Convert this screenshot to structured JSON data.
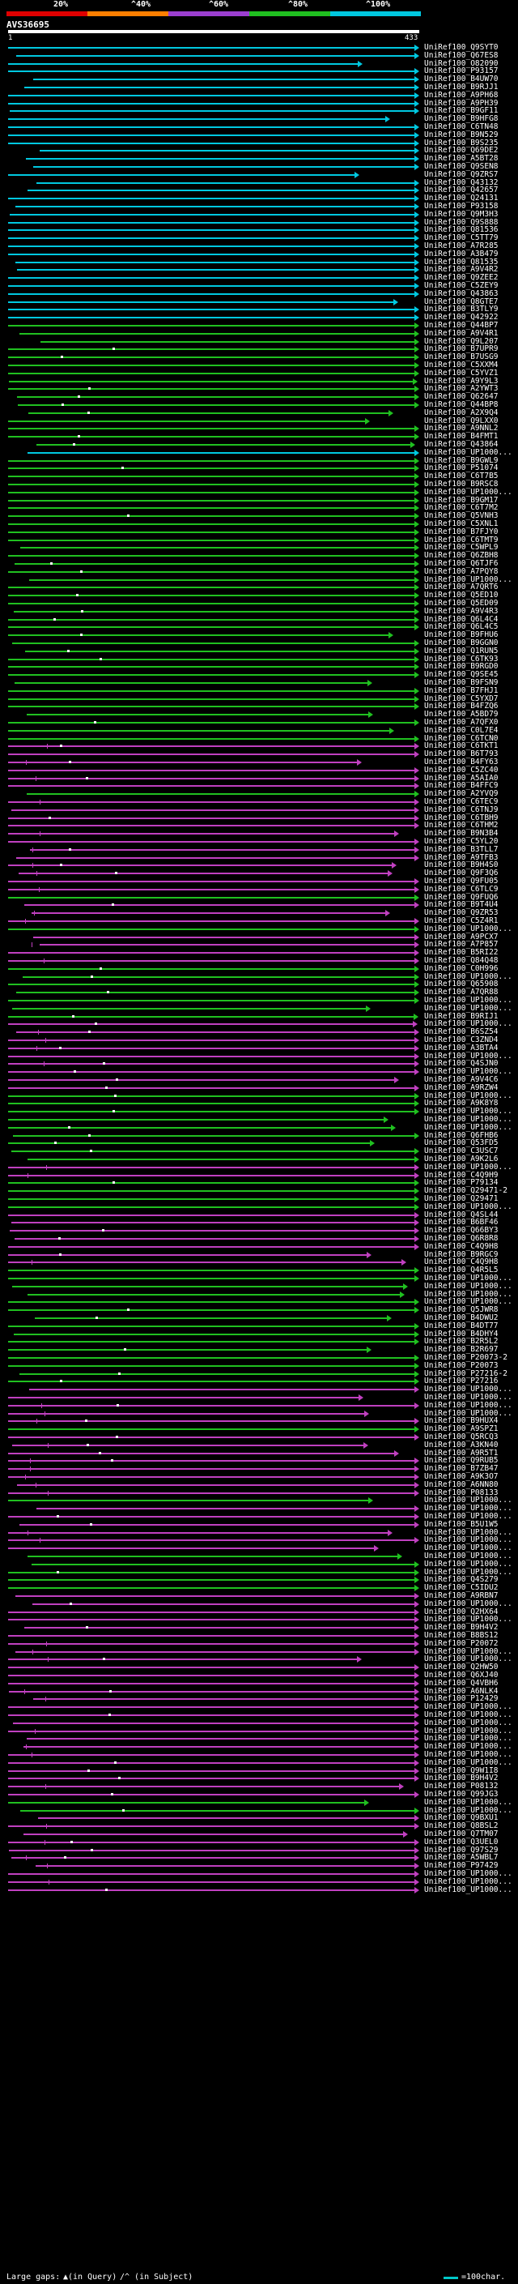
{
  "scale": {
    "ticks": [
      "20%",
      "^40%",
      "^60%",
      "^80%",
      "^100%"
    ],
    "colors": [
      "#e00000",
      "#ff7f00",
      "#9c3fd0",
      "#20c020",
      "#00c8e0"
    ]
  },
  "query": {
    "name": "AVS36695",
    "start": "1",
    "end": "433"
  },
  "hits": [
    {
      "id": "UniRef100_Q9SYT0",
      "pct": 100
    },
    {
      "id": "UniRef100_Q67ES8",
      "pct": 100
    },
    {
      "id": "UniRef100_O82090",
      "pct": 100
    },
    {
      "id": "UniRef100_P93157",
      "pct": 100
    },
    {
      "id": "UniRef100_B4UW70",
      "pct": 100
    },
    {
      "id": "UniRef100_B9RJJ1",
      "pct": 100
    },
    {
      "id": "UniRef100_A9PH68",
      "pct": 100
    },
    {
      "id": "UniRef100_A9PH39",
      "pct": 100
    },
    {
      "id": "UniRef100_B9GF11",
      "pct": 100
    },
    {
      "id": "UniRef100_B9HFG8",
      "pct": 100
    },
    {
      "id": "UniRef100_C6TN48",
      "pct": 100
    },
    {
      "id": "UniRef100_B9N529",
      "pct": 100
    },
    {
      "id": "UniRef100_B9S235",
      "pct": 100
    },
    {
      "id": "UniRef100_Q69DE2",
      "pct": 100
    },
    {
      "id": "UniRef100_A5BT28",
      "pct": 100
    },
    {
      "id": "UniRef100_Q9SEN8",
      "pct": 100
    },
    {
      "id": "UniRef100_Q9ZRS7",
      "pct": 100
    },
    {
      "id": "UniRef100_Q43132",
      "pct": 100
    },
    {
      "id": "UniRef100_Q42657",
      "pct": 100
    },
    {
      "id": "UniRef100_Q24131",
      "pct": 100
    },
    {
      "id": "UniRef100_P93158",
      "pct": 100
    },
    {
      "id": "UniRef100_Q9M3H3",
      "pct": 100
    },
    {
      "id": "UniRef100_Q9S888",
      "pct": 100
    },
    {
      "id": "UniRef100_Q81536",
      "pct": 100
    },
    {
      "id": "UniRef100_C5TT79",
      "pct": 100
    },
    {
      "id": "UniRef100_A7R285",
      "pct": 100
    },
    {
      "id": "UniRef100_A3B479",
      "pct": 100
    },
    {
      "id": "UniRef100_Q81535",
      "pct": 100
    },
    {
      "id": "UniRef100_A9V4R2",
      "pct": 100
    },
    {
      "id": "UniRef100_Q9ZEE2",
      "pct": 100
    },
    {
      "id": "UniRef100_C5ZEY9",
      "pct": 100
    },
    {
      "id": "UniRef100_Q43863",
      "pct": 100
    },
    {
      "id": "UniRef100_Q8GTE7",
      "pct": 100
    },
    {
      "id": "UniRef100_B3TLY9",
      "pct": 100
    },
    {
      "id": "UniRef100_Q42922",
      "pct": 100
    },
    {
      "id": "UniRef100_Q44BP7",
      "pct": 80
    },
    {
      "id": "UniRef100_A9V4R1",
      "pct": 80
    },
    {
      "id": "UniRef100_Q9L207",
      "pct": 80
    },
    {
      "id": "UniRef100_B7UPR9",
      "pct": 80
    },
    {
      "id": "UniRef100_B7USG9",
      "pct": 80
    },
    {
      "id": "UniRef100_C5XXM4",
      "pct": 80
    },
    {
      "id": "UniRef100_C5YVZ1",
      "pct": 80
    },
    {
      "id": "UniRef100_A9Y9L3",
      "pct": 80
    },
    {
      "id": "UniRef100_A2YWT3",
      "pct": 80
    },
    {
      "id": "UniRef100_Q62647",
      "pct": 80
    },
    {
      "id": "UniRef100_Q44BP8",
      "pct": 80
    },
    {
      "id": "UniRef100_A2X9Q4",
      "pct": 80
    },
    {
      "id": "UniRef100_Q9LXX0",
      "pct": 80
    },
    {
      "id": "UniRef100_A9NNL2",
      "pct": 80
    },
    {
      "id": "UniRef100_B4FMT1",
      "pct": 80
    },
    {
      "id": "UniRef100_Q43864",
      "pct": 80
    },
    {
      "id": "UniRef100_UP1000...",
      "pct": 100
    },
    {
      "id": "UniRef100_B9GWL9",
      "pct": 80
    },
    {
      "id": "UniRef100_P51074",
      "pct": 80
    },
    {
      "id": "UniRef100_C6T7B5",
      "pct": 80
    },
    {
      "id": "UniRef100_B9RSC8",
      "pct": 80
    },
    {
      "id": "UniRef100_UP1000...",
      "pct": 80
    },
    {
      "id": "UniRef100_B9GM17",
      "pct": 80
    },
    {
      "id": "UniRef100_C6T7M2",
      "pct": 80
    },
    {
      "id": "UniRef100_Q5VNH3",
      "pct": 80
    },
    {
      "id": "UniRef100_C5XNL1",
      "pct": 80
    },
    {
      "id": "UniRef100_B7FJY0",
      "pct": 80
    },
    {
      "id": "UniRef100_C6TMT9",
      "pct": 80
    },
    {
      "id": "UniRef100_C5WPL9",
      "pct": 80
    },
    {
      "id": "UniRef100_Q6ZBH8",
      "pct": 80
    },
    {
      "id": "UniRef100_Q6TJF6",
      "pct": 80
    },
    {
      "id": "UniRef100_A7PQY8",
      "pct": 80
    },
    {
      "id": "UniRef100_UP1000...",
      "pct": 80
    },
    {
      "id": "UniRef100_A7QRT6",
      "pct": 80
    },
    {
      "id": "UniRef100_Q5ED10",
      "pct": 80
    },
    {
      "id": "UniRef100_Q5ED09",
      "pct": 80
    },
    {
      "id": "UniRef100_A9V4R3",
      "pct": 80
    },
    {
      "id": "UniRef100_Q6L4C4",
      "pct": 80
    },
    {
      "id": "UniRef100_Q6L4C5",
      "pct": 80
    },
    {
      "id": "UniRef100_B9FHU6",
      "pct": 80
    },
    {
      "id": "UniRef100_B9GGN0",
      "pct": 80
    },
    {
      "id": "UniRef100_Q1RUN5",
      "pct": 80
    },
    {
      "id": "UniRef100_C6TK93",
      "pct": 80
    },
    {
      "id": "UniRef100_B9RGD0",
      "pct": 80
    },
    {
      "id": "UniRef100_Q9SE45",
      "pct": 80
    },
    {
      "id": "UniRef100_B9FSN9",
      "pct": 80
    },
    {
      "id": "UniRef100_B7FHJ1",
      "pct": 80
    },
    {
      "id": "UniRef100_C5YXD7",
      "pct": 80
    },
    {
      "id": "UniRef100_B4FZQ6",
      "pct": 80
    },
    {
      "id": "UniRef100_A5BD79",
      "pct": 80
    },
    {
      "id": "UniRef100_A7QFX0",
      "pct": 80
    },
    {
      "id": "UniRef100_C0L7E4",
      "pct": 80
    },
    {
      "id": "UniRef100_C6TCN0",
      "pct": 80
    },
    {
      "id": "UniRef100_C6TKT1",
      "pct": 60
    },
    {
      "id": "UniRef100_B6T793",
      "pct": 60
    },
    {
      "id": "UniRef100_B4FY63",
      "pct": 60
    },
    {
      "id": "UniRef100_C5ZC40",
      "pct": 60
    },
    {
      "id": "UniRef100_A5AIA0",
      "pct": 60
    },
    {
      "id": "UniRef100_B4FFC9",
      "pct": 60
    },
    {
      "id": "UniRef100_A2YVQ9",
      "pct": 80
    },
    {
      "id": "UniRef100_C6TEC9",
      "pct": 60
    },
    {
      "id": "UniRef100_C6TNJ9",
      "pct": 60
    },
    {
      "id": "UniRef100_C6TBH9",
      "pct": 60
    },
    {
      "id": "UniRef100_C6THM2",
      "pct": 60
    },
    {
      "id": "UniRef100_B9N3B4",
      "pct": 60
    },
    {
      "id": "UniRef100_C5YL20",
      "pct": 60
    },
    {
      "id": "UniRef100_B3TLL7",
      "pct": 60
    },
    {
      "id": "UniRef100_A9TFB3",
      "pct": 60
    },
    {
      "id": "UniRef100_B9H4S0",
      "pct": 60
    },
    {
      "id": "UniRef100_Q9F3Q6",
      "pct": 60
    },
    {
      "id": "UniRef100_Q9FU05",
      "pct": 60
    },
    {
      "id": "UniRef100_C6TLC9",
      "pct": 60
    },
    {
      "id": "UniRef100_Q9FUQ6",
      "pct": 80
    },
    {
      "id": "UniRef100_B9T4U4",
      "pct": 60
    },
    {
      "id": "UniRef100_Q9ZR53",
      "pct": 60
    },
    {
      "id": "UniRef100_C5Z4R1",
      "pct": 60
    },
    {
      "id": "UniRef100_UP1000...",
      "pct": 80
    },
    {
      "id": "UniRef100_A9PCX7",
      "pct": 60
    },
    {
      "id": "UniRef100_A7P857",
      "pct": 60
    },
    {
      "id": "UniRef100_B5RI22",
      "pct": 60
    },
    {
      "id": "UniRef100_Q84Q48",
      "pct": 60
    },
    {
      "id": "UniRef100_C0H996",
      "pct": 80
    },
    {
      "id": "UniRef100_UP1000...",
      "pct": 80
    },
    {
      "id": "UniRef100_Q65908",
      "pct": 80
    },
    {
      "id": "UniRef100_A7QR88",
      "pct": 80
    },
    {
      "id": "UniRef100_UP1000...",
      "pct": 80
    },
    {
      "id": "UniRef100_UP1000...",
      "pct": 80
    },
    {
      "id": "UniRef100_B9RIJ1",
      "pct": 80
    },
    {
      "id": "UniRef100_UP1000...",
      "pct": 60
    },
    {
      "id": "UniRef100_B6SZ54",
      "pct": 60
    },
    {
      "id": "UniRef100_C3ZND4",
      "pct": 60
    },
    {
      "id": "UniRef100_A3BTA4",
      "pct": 60
    },
    {
      "id": "UniRef100_UP1000...",
      "pct": 60
    },
    {
      "id": "UniRef100_Q4SJN0",
      "pct": 60
    },
    {
      "id": "UniRef100_UP1000...",
      "pct": 60
    },
    {
      "id": "UniRef100_A9V4C6",
      "pct": 60
    },
    {
      "id": "UniRef100_A9RZW4",
      "pct": 60
    },
    {
      "id": "UniRef100_UP1000...",
      "pct": 80
    },
    {
      "id": "UniRef100_A9K8Y8",
      "pct": 80
    },
    {
      "id": "UniRef100_UP1000...",
      "pct": 80
    },
    {
      "id": "UniRef100_UP1000...",
      "pct": 80
    },
    {
      "id": "UniRef100_UP1000...",
      "pct": 80
    },
    {
      "id": "UniRef100_Q6FHB6",
      "pct": 80
    },
    {
      "id": "UniRef100_Q53FD5",
      "pct": 80
    },
    {
      "id": "UniRef100_C3USC7",
      "pct": 80
    },
    {
      "id": "UniRef100_A9K2L6",
      "pct": 80
    },
    {
      "id": "UniRef100_UP1000...",
      "pct": 60
    },
    {
      "id": "UniRef100_C4Q9H9",
      "pct": 60
    },
    {
      "id": "UniRef100_P79134",
      "pct": 80
    },
    {
      "id": "UniRef100_Q29471-2",
      "pct": 80
    },
    {
      "id": "UniRef100_Q29471",
      "pct": 80
    },
    {
      "id": "UniRef100_UP1000...",
      "pct": 80
    },
    {
      "id": "UniRef100_Q4SL44",
      "pct": 60
    },
    {
      "id": "UniRef100_B6BF46",
      "pct": 60
    },
    {
      "id": "UniRef100_Q66BY3",
      "pct": 60
    },
    {
      "id": "UniRef100_Q6R8R8",
      "pct": 60
    },
    {
      "id": "UniRef100_C4Q9H8",
      "pct": 60
    },
    {
      "id": "UniRef100_B9RGC9",
      "pct": 60
    },
    {
      "id": "UniRef100_C4Q9H8",
      "pct": 60
    },
    {
      "id": "UniRef100_Q4R5L5",
      "pct": 80
    },
    {
      "id": "UniRef100_UP1000...",
      "pct": 80
    },
    {
      "id": "UniRef100_UP1000...",
      "pct": 80
    },
    {
      "id": "UniRef100_UP1000...",
      "pct": 80
    },
    {
      "id": "UniRef100_UP1000...",
      "pct": 80
    },
    {
      "id": "UniRef100_Q5JWR8",
      "pct": 80
    },
    {
      "id": "UniRef100_B4DWU2",
      "pct": 80
    },
    {
      "id": "UniRef100_B4DT77",
      "pct": 80
    },
    {
      "id": "UniRef100_B4DHY4",
      "pct": 80
    },
    {
      "id": "UniRef100_B2R5L2",
      "pct": 80
    },
    {
      "id": "UniRef100_B2R697",
      "pct": 80
    },
    {
      "id": "UniRef100_P20073-2",
      "pct": 80
    },
    {
      "id": "UniRef100_P20073",
      "pct": 80
    },
    {
      "id": "UniRef100_P27216-2",
      "pct": 80
    },
    {
      "id": "UniRef100_P27216",
      "pct": 80
    },
    {
      "id": "UniRef100_UP1000...",
      "pct": 60
    },
    {
      "id": "UniRef100_UP1000...",
      "pct": 60
    },
    {
      "id": "UniRef100_UP1000...",
      "pct": 60
    },
    {
      "id": "UniRef100_UP1000...",
      "pct": 60
    },
    {
      "id": "UniRef100_B9HUX4",
      "pct": 60
    },
    {
      "id": "UniRef100_A9SPZ1",
      "pct": 80
    },
    {
      "id": "UniRef100_Q5RCQ3",
      "pct": 60
    },
    {
      "id": "UniRef100_A3KN40",
      "pct": 60
    },
    {
      "id": "UniRef100_A9R5T1",
      "pct": 60
    },
    {
      "id": "UniRef100_Q9RUB5",
      "pct": 60
    },
    {
      "id": "UniRef100_B7ZB47",
      "pct": 60
    },
    {
      "id": "UniRef100_A9K3O7",
      "pct": 60
    },
    {
      "id": "UniRef100_A6NN80",
      "pct": 60
    },
    {
      "id": "UniRef100_P08133",
      "pct": 60
    },
    {
      "id": "UniRef100_UP1000...",
      "pct": 80
    },
    {
      "id": "UniRef100_UP1000...",
      "pct": 60
    },
    {
      "id": "UniRef100_UP1000...",
      "pct": 60
    },
    {
      "id": "UniRef100_B5U1W5",
      "pct": 60
    },
    {
      "id": "UniRef100_UP1000...",
      "pct": 60
    },
    {
      "id": "UniRef100_UP1000...",
      "pct": 60
    },
    {
      "id": "UniRef100_UP1000...",
      "pct": 60
    },
    {
      "id": "UniRef100_UP1000...",
      "pct": 80
    },
    {
      "id": "UniRef100_UP1000...",
      "pct": 80
    },
    {
      "id": "UniRef100_UP1000...",
      "pct": 80
    },
    {
      "id": "UniRef100_Q4S279",
      "pct": 80
    },
    {
      "id": "UniRef100_C5IDU2",
      "pct": 80
    },
    {
      "id": "UniRef100_A9RBN7",
      "pct": 60
    },
    {
      "id": "UniRef100_UP1000...",
      "pct": 60
    },
    {
      "id": "UniRef100_Q2HX64",
      "pct": 60
    },
    {
      "id": "UniRef100_UP1000...",
      "pct": 60
    },
    {
      "id": "UniRef100_B9H4V2",
      "pct": 60
    },
    {
      "id": "UniRef100_B8BS12",
      "pct": 60
    },
    {
      "id": "UniRef100_P20072",
      "pct": 60
    },
    {
      "id": "UniRef100_UP1000...",
      "pct": 60
    },
    {
      "id": "UniRef100_UP1000...",
      "pct": 60
    },
    {
      "id": "UniRef100_Q2HW50",
      "pct": 60
    },
    {
      "id": "UniRef100_Q6XJ40",
      "pct": 60
    },
    {
      "id": "UniRef100_Q4VBH6",
      "pct": 60
    },
    {
      "id": "UniRef100_A6NLK4",
      "pct": 60
    },
    {
      "id": "UniRef100_P12429",
      "pct": 60
    },
    {
      "id": "UniRef100_UP1000...",
      "pct": 60
    },
    {
      "id": "UniRef100_UP1000...",
      "pct": 60
    },
    {
      "id": "UniRef100_UP1000...",
      "pct": 60
    },
    {
      "id": "UniRef100_UP1000...",
      "pct": 60
    },
    {
      "id": "UniRef100_UP1000...",
      "pct": 60
    },
    {
      "id": "UniRef100_UP1000...",
      "pct": 60
    },
    {
      "id": "UniRef100_UP1000...",
      "pct": 60
    },
    {
      "id": "UniRef100_UP1000...",
      "pct": 60
    },
    {
      "id": "UniRef100_Q9W1I8",
      "pct": 60
    },
    {
      "id": "UniRef100_B9H4V2",
      "pct": 60
    },
    {
      "id": "UniRef100_P08132",
      "pct": 60
    },
    {
      "id": "UniRef100_Q99JG3",
      "pct": 60
    },
    {
      "id": "UniRef100_UP1000...",
      "pct": 80
    },
    {
      "id": "UniRef100_UP1000...",
      "pct": 80
    },
    {
      "id": "UniRef100_Q9BXU1",
      "pct": 60
    },
    {
      "id": "UniRef100_Q8BSL2",
      "pct": 60
    },
    {
      "id": "UniRef100_Q7TM07",
      "pct": 60
    },
    {
      "id": "UniRef100_Q3UEL0",
      "pct": 60
    },
    {
      "id": "UniRef100_Q97S29",
      "pct": 60
    },
    {
      "id": "UniRef100_A5WBL7",
      "pct": 60
    },
    {
      "id": "UniRef100_P97429",
      "pct": 60
    },
    {
      "id": "UniRef100_UP1000...",
      "pct": 60
    },
    {
      "id": "UniRef100_UP1000...",
      "pct": 60
    },
    {
      "id": "UniRef100_UP1000...",
      "pct": 60
    }
  ],
  "legend": {
    "large_gaps": "Large gaps:",
    "in_query": "▲(in Query)",
    "in_subject": "/^ (in Subject)",
    "scale_key": "=100char."
  },
  "colors": {
    "pct100": "#00c8e0",
    "pct80": "#20c020",
    "pct60": "#c040c0",
    "label": "#ffffff"
  }
}
